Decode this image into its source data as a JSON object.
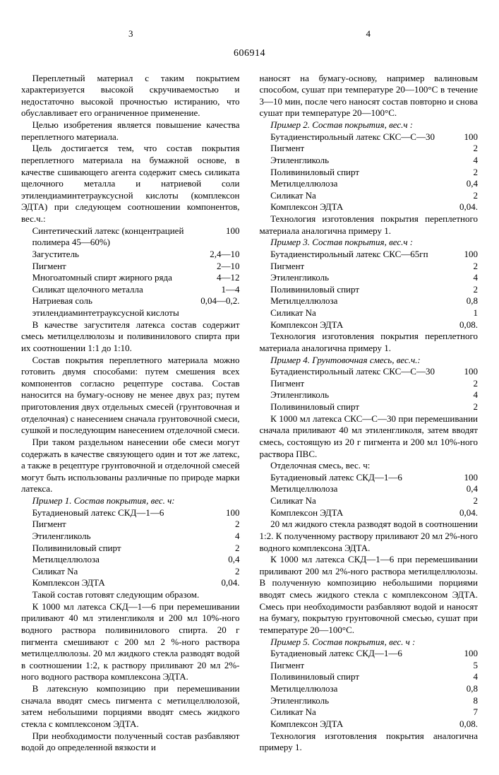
{
  "patent_number": "606914",
  "page_left": "3",
  "page_right": "4",
  "p1": "Переплетный материал с таким покрытием характеризуется высокой скручиваемостью и недостаточно высокой прочностью истиранию, что обуславливает его ограниченное применение.",
  "p2": "Целью изобретения является повышение качества переплетного материала.",
  "p3": "Цель достигается тем, что состав покрытия переплетного материала на бумажной основе, в качестве сшивающего агента содержит смесь силиката щелочного металла и натриевой соли этилендиаминтетрауксусной кислоты (комплексон ЭДТА) при следующем соотношении компонентов, вес.ч.:",
  "f1": [
    {
      "l": "Синтетический латекс (концентрацией полимера 45—60%)",
      "v": "100"
    },
    {
      "l": "Загуститель",
      "v": "2,4—10"
    },
    {
      "l": "Пигмент",
      "v": "2—10"
    },
    {
      "l": "Многоатомный спирт жирного ряда",
      "v": "4—12"
    },
    {
      "l": "Силикат щелочного металла",
      "v": "1—4"
    },
    {
      "l": "Натриевая соль этилендиаминтетрауксусной кислоты",
      "v": "0,04—0,2."
    }
  ],
  "p4": "В качестве загустителя латекса состав содержит смесь метилцеллюлозы и поливинилового спирта при их соотношении 1:1 до 1:10.",
  "p5": "Состав покрытия переплетного материала можно готовить двумя способами: путем смешения всех компонентов согласно рецептуре состава. Состав наносится на бумагу-основу не менее двух раз; путем приготовления двух отдельных смесей (грунтовочная и отделочная) с нанесением сначала грунтовочной смеси, сушкой и последующим нанесением отделочной смеси.",
  "p6": "При таком раздельном нанесении обе смеси могут содержать в качестве связующего один и тот же латекс, а также в рецептуре грунтовочной и отделочной смесей могут быть использованы различные по природе марки латекса.",
  "ex1_title": "Пример 1. Состав покрытия, вес. ч:",
  "f2": [
    {
      "l": "Бутадиеновый латекс СКД—1—6",
      "v": "100"
    },
    {
      "l": "Пигмент",
      "v": "2"
    },
    {
      "l": "Этиленгликоль",
      "v": "4"
    },
    {
      "l": "Поливиниловый спирт",
      "v": "2"
    },
    {
      "l": "Метилцеллюлоза",
      "v": "0,4"
    },
    {
      "l": "Силикат Na",
      "v": "2"
    },
    {
      "l": "Комплексон ЭДТА",
      "v": "0,04."
    }
  ],
  "p7": "Такой состав готовят следующим образом.",
  "p8": "К 1000 мл латекса СКД—1—6 при перемешивании приливают 40 мл этиленгликоля и 200 мл 10%-ного водного раствора поливинилового спирта. 20 г пигмента смешивают с 200 мл 2 %-ного раствора метилцеллюлозы. 20 мл жидкого стекла разводят водой в соотношении 1:2, к раствору приливают 20 мл 2%-ного водного раствора комплексона ЭДТА.",
  "p9": "В латексную композицию при перемешивании сначала вводят смесь пигмента с метилцеллюлозой, затем небольшими порциями вводят смесь жидкого стекла с комплексоном ЭДТА.",
  "p10": "При необходимости полученный состав разбавляют водой до определенной вязкости и",
  "p11": "наносят на бумагу-основу, например валиновым способом, сушат при температуре 20—100°С в течение 3—10 мин, после чего наносят состав повторно и снова сушат при температуре 20—100°С.",
  "ex2_title": "Пример 2. Состав покрытия, вес.ч :",
  "f3": [
    {
      "l": "Бутадиенстирольный латекс СКС—С—30",
      "v": "100"
    },
    {
      "l": "Пигмент",
      "v": "2"
    },
    {
      "l": "Этиленгликоль",
      "v": "4"
    },
    {
      "l": "Поливиниловый спирт",
      "v": "2"
    },
    {
      "l": "Метилцеллюлоза",
      "v": "0,4"
    },
    {
      "l": "Силикат Na",
      "v": "2"
    },
    {
      "l": "Комплексон ЭДТА",
      "v": "0,04."
    }
  ],
  "p12": "Технология изготовления покрытия переплетного материала аналогична примеру 1.",
  "ex3_title": "Пример 3. Состав покрытия, вес.ч :",
  "f4": [
    {
      "l": "Бутадиенстирольный латекс СКС—65гп",
      "v": "100"
    },
    {
      "l": "Пигмент",
      "v": "2"
    },
    {
      "l": "Этиленгликоль",
      "v": "4"
    },
    {
      "l": "Поливиниловый спирт",
      "v": "2"
    },
    {
      "l": "Метилцеллюлоза",
      "v": "0,8"
    },
    {
      "l": "Силикат Na",
      "v": "1"
    },
    {
      "l": "Комплексон ЭДТА",
      "v": "0,08."
    }
  ],
  "p13": "Технология изготовления покрытия переплетного материала аналогична примеру 1.",
  "ex4_title": "Пример 4. Грунтовочная смесь, вес.ч.:",
  "f5": [
    {
      "l": "Бутадиенстирольный латекс СКС—С—30",
      "v": "100"
    },
    {
      "l": "Пигмент",
      "v": "2"
    },
    {
      "l": "Этиленгликоль",
      "v": "4"
    },
    {
      "l": "Поливиниловый спирт",
      "v": "2"
    }
  ],
  "p14": "К 1000 мл латекса СКС—С—30 при перемешивании сначала приливают 40 мл этиленгликоля, затем вводят смесь, состоящую из 20 г пигмента и 200 мл 10%-ного раствора ПВС.",
  "p14b": "Отделочная смесь, вес. ч:",
  "f6": [
    {
      "l": "Бутадиеновый латекс СКД—1—6",
      "v": "100"
    },
    {
      "l": "Метилцеллюлоза",
      "v": "0,4"
    },
    {
      "l": "Силикат Na",
      "v": "2"
    },
    {
      "l": "Комплексон ЭДТА",
      "v": "0,04."
    }
  ],
  "p15": "20 мл жидкого стекла разводят водой в соотношении 1:2. К полученному раствору приливают 20 мл 2%-ного водного комплексона ЭДТА.",
  "p16": "К 1000 мл латекса СКД—1—6 при перемешивании приливают 200 мл 2%-ного раствора метилцеллюлозы. В полученную композицию небольшими порциями вводят смесь жидкого стекла с комплексоном ЭДТА. Смесь при необходимости разбавляют водой и наносят на бумагу, покрытую грунтовочной смесью, сушат при температуре 20—100°С.",
  "ex5_title": "Пример 5. Состав покрытия, вес. ч :",
  "f7": [
    {
      "l": "Бутадиеновый латекс СКД—1—6",
      "v": "100"
    },
    {
      "l": "Пигмент",
      "v": "5"
    },
    {
      "l": "Поливиниловый спирт",
      "v": "4"
    },
    {
      "l": "Метилцеллюлоза",
      "v": "0,8"
    },
    {
      "l": "Этиленгликоль",
      "v": "8"
    },
    {
      "l": "Силикат Na",
      "v": "7"
    },
    {
      "l": "Комплексон ЭДТА",
      "v": "0,08."
    }
  ],
  "p17": "Технология изготовления покрытия аналогична примеру 1."
}
